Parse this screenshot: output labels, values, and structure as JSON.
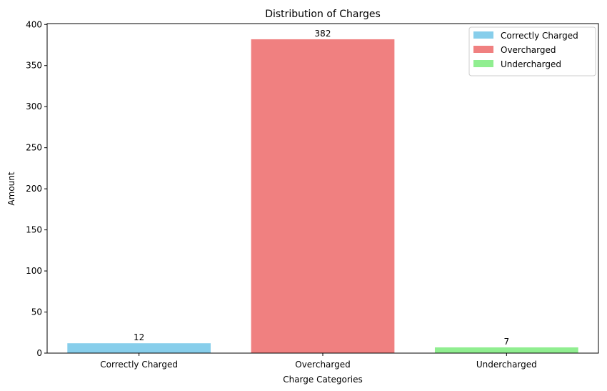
{
  "chart_data": {
    "type": "bar",
    "title": "Distribution of Charges",
    "xlabel": "Charge Categories",
    "ylabel": "Amount",
    "categories": [
      "Correctly Charged",
      "Overcharged",
      "Undercharged"
    ],
    "values": [
      12,
      382,
      7
    ],
    "data_labels": [
      "12",
      "382",
      "7"
    ],
    "colors": [
      "#87ceeb",
      "#f08080",
      "#90ee90"
    ],
    "ylim": [
      0,
      401.1
    ],
    "yticks": [
      0,
      50,
      100,
      150,
      200,
      250,
      300,
      350,
      400
    ],
    "ytick_labels": [
      "0",
      "50",
      "100",
      "150",
      "200",
      "250",
      "300",
      "350",
      "400"
    ],
    "grid": false,
    "legend": {
      "placement": "top-right",
      "entries": [
        "Correctly Charged",
        "Overcharged",
        "Undercharged"
      ]
    }
  }
}
